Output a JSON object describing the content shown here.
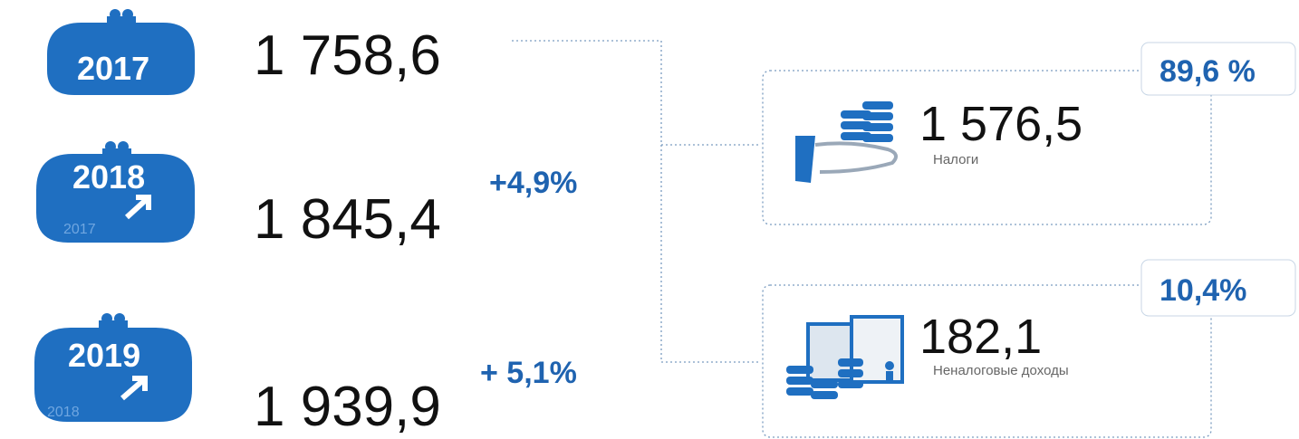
{
  "years": [
    {
      "year": "2017",
      "value": "1 758,6"
    },
    {
      "year": "2018",
      "base_year": "2017",
      "value": "1 845,4",
      "growth": "+4,9%"
    },
    {
      "year": "2019",
      "base_year": "2018",
      "value": "1 939,9",
      "growth": "+ 5,1%"
    }
  ],
  "breakdown": [
    {
      "share": "89,6 %",
      "value": "1 576,5",
      "label": "Налоги"
    },
    {
      "share": "10,4%",
      "value": "182,1",
      "label": "Неналоговые доходы"
    }
  ]
}
